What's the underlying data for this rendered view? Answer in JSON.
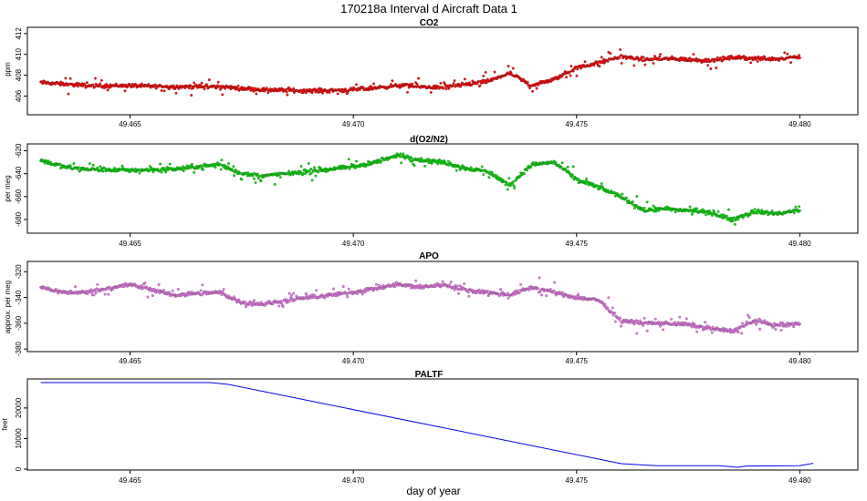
{
  "figure": {
    "title": "170218a   Interval d Aircraft Data 1",
    "xlabel": "day of year"
  },
  "chart_data": [
    {
      "type": "scatter",
      "title": "CO2",
      "ylabel": "ppm",
      "xlim": [
        49.4627,
        49.4813
      ],
      "ylim": [
        404.2,
        412.6
      ],
      "yticks": [
        406,
        408,
        410,
        412
      ],
      "xticks": [
        49.465,
        49.47,
        49.475,
        49.48
      ],
      "color": "#ff0000",
      "series": [
        {
          "x": [
            49.463,
            49.464,
            49.465,
            49.466,
            49.467,
            49.468,
            49.469,
            49.47,
            49.471,
            49.472,
            49.473,
            49.4735,
            49.474,
            49.4745,
            49.475,
            49.4755,
            49.476,
            49.4765,
            49.477,
            49.4775,
            49.478,
            49.4785,
            49.479,
            49.4795,
            49.48
          ],
          "y": [
            407.3,
            407.0,
            407.0,
            406.9,
            406.9,
            406.6,
            406.5,
            406.6,
            407.0,
            406.8,
            407.4,
            408.2,
            407.0,
            407.6,
            408.7,
            409.2,
            409.8,
            409.5,
            409.6,
            409.5,
            409.4,
            409.7,
            409.6,
            409.6,
            409.8
          ]
        }
      ]
    },
    {
      "type": "scatter",
      "title": "d(O2/N2)",
      "ylabel": "per meg",
      "xlim": [
        49.4627,
        49.4813
      ],
      "ylim": [
        -692,
        -614
      ],
      "yticks": [
        -680,
        -660,
        -640,
        -620
      ],
      "xticks": [
        49.465,
        49.47,
        49.475,
        49.48
      ],
      "color": "#00dd00",
      "series": [
        {
          "x": [
            49.463,
            49.4635,
            49.464,
            49.465,
            49.466,
            49.467,
            49.4675,
            49.468,
            49.469,
            49.47,
            49.4705,
            49.471,
            49.4715,
            49.472,
            49.4725,
            49.473,
            49.4735,
            49.474,
            49.4745,
            49.475,
            49.4755,
            49.476,
            49.4765,
            49.477,
            49.4775,
            49.478,
            49.4785,
            49.479,
            49.4795,
            49.48
          ],
          "y": [
            -628,
            -634,
            -636,
            -637,
            -636,
            -632,
            -640,
            -642,
            -638,
            -634,
            -630,
            -624,
            -628,
            -630,
            -635,
            -638,
            -650,
            -632,
            -630,
            -645,
            -652,
            -660,
            -672,
            -671,
            -672,
            -674,
            -680,
            -673,
            -675,
            -672
          ]
        }
      ]
    },
    {
      "type": "scatter",
      "title": "APO",
      "ylabel": "approx. per meg",
      "xlim": [
        49.4627,
        49.4813
      ],
      "ylim": [
        -382,
        -312
      ],
      "yticks": [
        -380,
        -360,
        -340,
        -320
      ],
      "xticks": [
        49.465,
        49.47,
        49.475,
        49.48
      ],
      "color": "#ee77ee",
      "series": [
        {
          "x": [
            49.463,
            49.4635,
            49.464,
            49.465,
            49.466,
            49.467,
            49.4675,
            49.468,
            49.469,
            49.47,
            49.4705,
            49.471,
            49.4715,
            49.472,
            49.4725,
            49.473,
            49.4735,
            49.474,
            49.4745,
            49.475,
            49.4755,
            49.476,
            49.4765,
            49.477,
            49.4775,
            49.478,
            49.4785,
            49.479,
            49.4795,
            49.48
          ],
          "y": [
            -332,
            -336,
            -336,
            -330,
            -338,
            -336,
            -344,
            -345,
            -340,
            -336,
            -333,
            -330,
            -332,
            -330,
            -334,
            -336,
            -338,
            -332,
            -336,
            -340,
            -342,
            -358,
            -360,
            -360,
            -361,
            -364,
            -366,
            -358,
            -362,
            -360
          ]
        }
      ]
    },
    {
      "type": "line",
      "title": "PALTF",
      "ylabel": "feet",
      "xlim": [
        49.4627,
        49.4813
      ],
      "ylim": [
        -300,
        29500
      ],
      "yticks": [
        0,
        10000,
        20000
      ],
      "xticks": [
        49.465,
        49.47,
        49.475,
        49.48
      ],
      "color": "#0000ee",
      "series": [
        {
          "x": [
            49.463,
            49.4668,
            49.4672,
            49.476,
            49.4768,
            49.4782,
            49.4786,
            49.4788,
            49.48,
            49.4803
          ],
          "y": [
            28300,
            28300,
            27700,
            1800,
            1100,
            1100,
            600,
            1000,
            1100,
            1900
          ]
        }
      ]
    }
  ]
}
